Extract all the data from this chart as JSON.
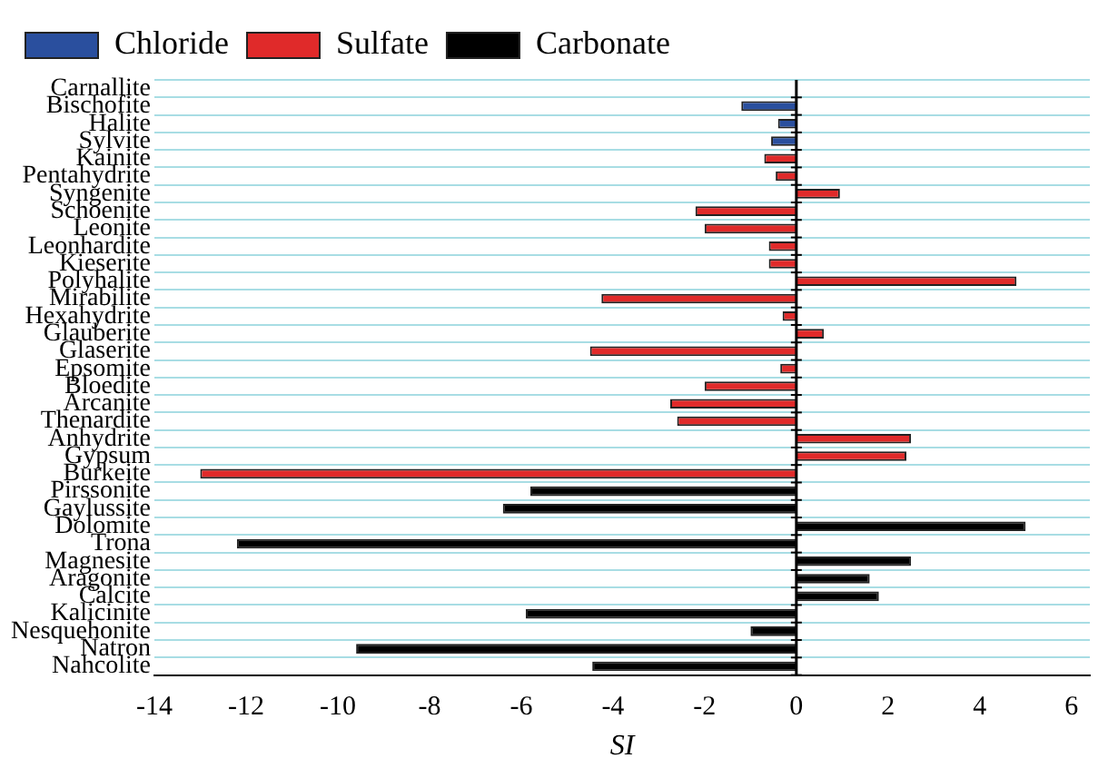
{
  "chart_data": {
    "type": "bar",
    "orientation": "horizontal",
    "xlabel": "SI",
    "categories": [
      "Carnallite",
      "Bischofite",
      "Halite",
      "Sylvite",
      "Kainite",
      "Pentahydrite",
      "Syngenite",
      "Schoenite",
      "Leonite",
      "Leonhardite",
      "Kieserite",
      "Polyhalite",
      "Mirabilite",
      "Hexahydrite",
      "Glauberite",
      "Glaserite",
      "Epsomite",
      "Bloedite",
      "Arcanite",
      "Thenardite",
      "Anhydrite",
      "Gypsum",
      "Burkeite",
      "Pirssonite",
      "Gaylussite",
      "Dolomite",
      "Trona",
      "Magnesite",
      "Aragonite",
      "Calcite",
      "Kalicinite",
      "Nesquehonite",
      "Natron",
      "Nahcolite"
    ],
    "series": [
      {
        "name": "Chloride",
        "color": "#2a4f9e",
        "values": [
          null,
          -1.2,
          -0.4,
          -0.55,
          null,
          null,
          null,
          null,
          null,
          null,
          null,
          null,
          null,
          null,
          null,
          null,
          null,
          null,
          null,
          null,
          null,
          null,
          null,
          null,
          null,
          null,
          null,
          null,
          null,
          null,
          null,
          null,
          null,
          null
        ]
      },
      {
        "name": "Sulfate",
        "color": "#e02a2a",
        "values": [
          null,
          null,
          null,
          null,
          -0.7,
          -0.45,
          0.95,
          -2.2,
          -2,
          -0.6,
          -0.6,
          4.8,
          -4.25,
          -0.3,
          0.6,
          -4.5,
          -0.35,
          -2,
          -2.75,
          -2.6,
          2.5,
          2.4,
          -13,
          null,
          null,
          null,
          null,
          null,
          null,
          null,
          null,
          null,
          null,
          null
        ]
      },
      {
        "name": "Carbonate",
        "color": "#000000",
        "values": [
          null,
          null,
          null,
          null,
          null,
          null,
          null,
          null,
          null,
          null,
          null,
          null,
          null,
          null,
          null,
          null,
          null,
          null,
          null,
          null,
          null,
          null,
          null,
          -5.8,
          -6.4,
          5,
          -12.2,
          2.5,
          1.6,
          1.8,
          -5.9,
          -1,
          -9.6,
          -4.45
        ]
      }
    ],
    "xlim": [
      -14,
      6.4
    ],
    "xticks": [
      -14,
      -12,
      -10,
      -8,
      -6,
      -4,
      -2,
      0,
      2,
      4,
      6
    ],
    "grid": "y",
    "legend": "top left"
  }
}
